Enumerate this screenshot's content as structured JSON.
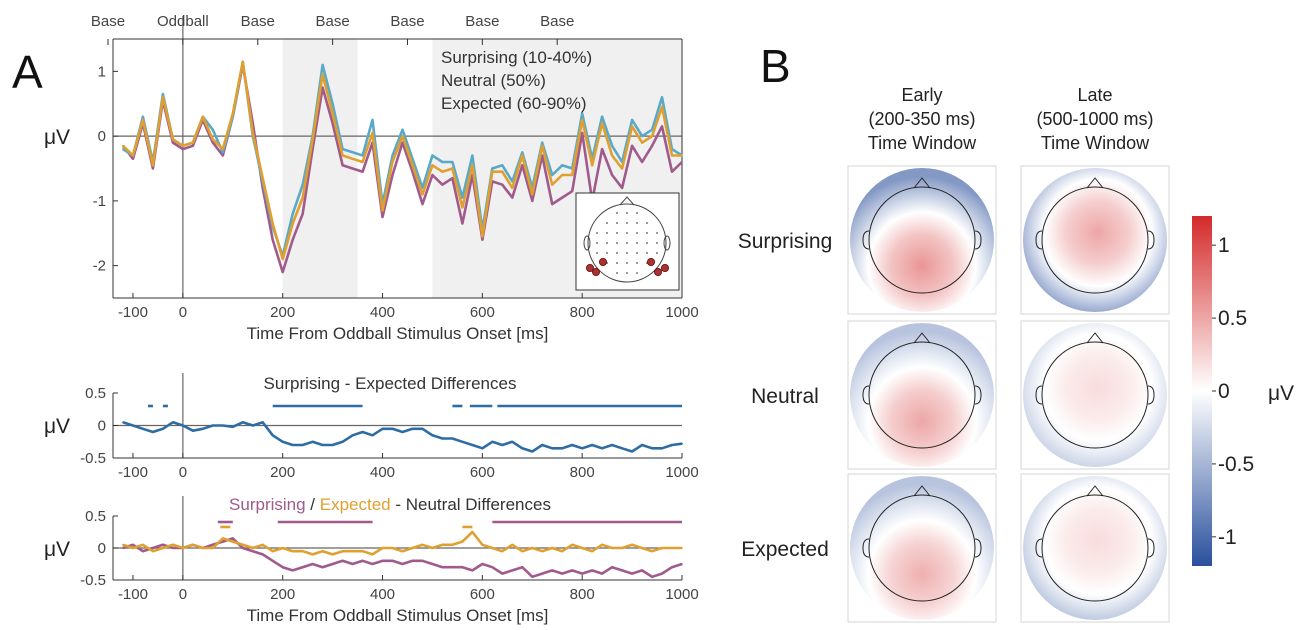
{
  "panel_a_label": "A",
  "panel_b_label": "B",
  "chart_data": [
    {
      "type": "line",
      "x": [
        -120,
        -100,
        -80,
        -60,
        -40,
        -20,
        0,
        20,
        40,
        60,
        80,
        100,
        120,
        140,
        160,
        180,
        200,
        220,
        240,
        260,
        280,
        300,
        320,
        340,
        360,
        380,
        400,
        420,
        440,
        460,
        480,
        500,
        520,
        540,
        560,
        580,
        600,
        620,
        640,
        660,
        680,
        700,
        720,
        740,
        760,
        780,
        800,
        820,
        840,
        860,
        880,
        900,
        920,
        940,
        960,
        980,
        1000
      ],
      "series": [
        {
          "name": "Surprising (10-40%)",
          "color": "#a05a8c",
          "values": [
            -0.15,
            -0.35,
            0.2,
            -0.5,
            0.55,
            -0.1,
            -0.2,
            -0.15,
            0.25,
            -0.1,
            -0.3,
            0.3,
            1.1,
            0.2,
            -0.8,
            -1.6,
            -2.1,
            -1.6,
            -1.2,
            -0.2,
            0.75,
            0.2,
            -0.45,
            -0.5,
            -0.55,
            -0.1,
            -1.25,
            -0.6,
            -0.1,
            -0.55,
            -1.05,
            -0.6,
            -0.75,
            -0.65,
            -1.35,
            -0.6,
            -1.6,
            -0.7,
            -0.75,
            -0.95,
            -0.45,
            -1.0,
            -0.3,
            -1.05,
            -0.95,
            -0.85,
            0.05,
            -1.0,
            -0.2,
            -0.6,
            -0.8,
            -0.15,
            -0.4,
            -0.15,
            0.15,
            -0.55,
            -0.4
          ]
        },
        {
          "name": "Neutral (50%)",
          "color": "#5aa9c9",
          "values": [
            -0.2,
            -0.3,
            0.3,
            -0.4,
            0.65,
            -0.05,
            -0.15,
            -0.1,
            0.3,
            0.1,
            -0.25,
            0.3,
            1.15,
            0.0,
            -0.7,
            -1.4,
            -1.85,
            -1.2,
            -0.75,
            0.0,
            1.1,
            0.5,
            -0.2,
            -0.25,
            -0.3,
            0.25,
            -1.05,
            -0.3,
            0.1,
            -0.35,
            -0.8,
            -0.3,
            -0.4,
            -0.4,
            -0.95,
            -0.3,
            -1.45,
            -0.5,
            -0.45,
            -0.7,
            -0.25,
            -0.8,
            -0.1,
            -0.6,
            -0.45,
            -0.5,
            0.35,
            -0.35,
            0.3,
            -0.15,
            -0.4,
            0.25,
            0.0,
            0.1,
            0.6,
            -0.2,
            -0.3
          ]
        },
        {
          "name": "Expected (60-90%)",
          "color": "#e0a030",
          "values": [
            -0.15,
            -0.3,
            0.25,
            -0.45,
            0.6,
            -0.05,
            -0.15,
            -0.1,
            0.3,
            -0.05,
            -0.2,
            0.35,
            1.15,
            0.05,
            -0.65,
            -1.35,
            -1.9,
            -1.35,
            -0.95,
            -0.05,
            0.95,
            0.35,
            -0.3,
            -0.35,
            -0.4,
            0.05,
            -1.15,
            -0.4,
            0.0,
            -0.45,
            -0.9,
            -0.45,
            -0.55,
            -0.5,
            -1.1,
            -0.45,
            -1.55,
            -0.55,
            -0.55,
            -0.8,
            -0.3,
            -0.9,
            -0.15,
            -0.75,
            -0.6,
            -0.6,
            0.25,
            -0.45,
            0.2,
            -0.3,
            -0.5,
            0.15,
            -0.1,
            0.0,
            0.45,
            -0.3,
            -0.3
          ]
        }
      ],
      "top_labels": [
        "Base",
        "Oddball",
        "Base",
        "Base",
        "Base",
        "Base",
        "Base"
      ],
      "top_label_x": [
        -150,
        0,
        150,
        300,
        450,
        600,
        750
      ],
      "shaded_windows": [
        [
          200,
          350
        ],
        [
          500,
          1000
        ]
      ],
      "xlim": [
        -140,
        1000
      ],
      "ylim": [
        -2.5,
        1.5
      ],
      "xticks": [
        -100,
        0,
        200,
        400,
        600,
        800,
        1000
      ],
      "yticks": [
        -2,
        -1,
        0,
        1
      ],
      "ylabel": "μV",
      "xlabel": "Time From Oddball Stimulus Onset [ms]",
      "grid": false,
      "legend_position": "top-right",
      "inset": "electrode head map (occipital electrodes highlighted)"
    },
    {
      "type": "line",
      "title": "Surprising - Expected Differences",
      "x": [
        -120,
        -100,
        -80,
        -60,
        -40,
        -20,
        0,
        20,
        40,
        60,
        80,
        100,
        120,
        140,
        160,
        180,
        200,
        220,
        240,
        260,
        280,
        300,
        320,
        340,
        360,
        380,
        400,
        420,
        440,
        460,
        480,
        500,
        520,
        540,
        560,
        580,
        600,
        620,
        640,
        660,
        680,
        700,
        720,
        740,
        760,
        780,
        800,
        820,
        840,
        860,
        880,
        900,
        920,
        940,
        960,
        980,
        1000
      ],
      "series": [
        {
          "name": "Surprising - Expected",
          "color": "#2e6ca4",
          "values": [
            0.05,
            0.0,
            -0.05,
            -0.1,
            -0.05,
            0.05,
            0.0,
            -0.08,
            -0.05,
            0.0,
            0.0,
            -0.02,
            0.05,
            0.0,
            0.05,
            -0.15,
            -0.25,
            -0.3,
            -0.3,
            -0.25,
            -0.3,
            -0.3,
            -0.25,
            -0.15,
            -0.1,
            -0.15,
            -0.05,
            -0.05,
            -0.1,
            -0.05,
            -0.05,
            -0.15,
            -0.2,
            -0.2,
            -0.25,
            -0.3,
            -0.35,
            -0.25,
            -0.3,
            -0.25,
            -0.35,
            -0.4,
            -0.3,
            -0.35,
            -0.35,
            -0.3,
            -0.35,
            -0.3,
            -0.35,
            -0.3,
            -0.35,
            -0.4,
            -0.3,
            -0.35,
            -0.35,
            -0.3,
            -0.28
          ]
        }
      ],
      "significance_bars": [
        {
          "color": "#2e6ca4",
          "segments": [
            [
              -70,
              -60
            ],
            [
              -40,
              -30
            ],
            [
              180,
              360
            ],
            [
              540,
              560
            ],
            [
              575,
              620
            ],
            [
              630,
              1000
            ]
          ]
        }
      ],
      "xlim": [
        -140,
        1000
      ],
      "ylim": [
        -0.5,
        0.5
      ],
      "xticks": [
        -100,
        0,
        200,
        400,
        600,
        800,
        1000
      ],
      "yticks": [
        -0.5,
        0,
        0.5
      ],
      "ylabel": "μV",
      "xlabel": ""
    },
    {
      "type": "line",
      "title_parts": [
        {
          "text": "Surprising",
          "color": "#a05a8c"
        },
        {
          "text": " / ",
          "color": "#333333"
        },
        {
          "text": "Expected",
          "color": "#e0a030"
        },
        {
          "text": " - Neutral Differences",
          "color": "#333333"
        }
      ],
      "x": [
        -120,
        -100,
        -80,
        -60,
        -40,
        -20,
        0,
        20,
        40,
        60,
        80,
        100,
        120,
        140,
        160,
        180,
        200,
        220,
        240,
        260,
        280,
        300,
        320,
        340,
        360,
        380,
        400,
        420,
        440,
        460,
        480,
        500,
        520,
        540,
        560,
        580,
        600,
        620,
        640,
        660,
        680,
        700,
        720,
        740,
        760,
        780,
        800,
        820,
        840,
        860,
        880,
        900,
        920,
        940,
        960,
        980,
        1000
      ],
      "series": [
        {
          "name": "Surprising - Neutral",
          "color": "#a05a8c",
          "values": [
            0.0,
            0.05,
            -0.05,
            0.0,
            0.05,
            0.0,
            0.0,
            0.05,
            0.0,
            0.05,
            0.1,
            0.15,
            0.0,
            -0.05,
            -0.1,
            -0.2,
            -0.3,
            -0.35,
            -0.3,
            -0.25,
            -0.3,
            -0.25,
            -0.2,
            -0.25,
            -0.2,
            -0.25,
            -0.2,
            -0.2,
            -0.25,
            -0.2,
            -0.2,
            -0.25,
            -0.3,
            -0.3,
            -0.3,
            -0.35,
            -0.25,
            -0.3,
            -0.4,
            -0.35,
            -0.3,
            -0.45,
            -0.4,
            -0.35,
            -0.4,
            -0.35,
            -0.4,
            -0.35,
            -0.4,
            -0.3,
            -0.35,
            -0.4,
            -0.35,
            -0.45,
            -0.4,
            -0.3,
            -0.25
          ]
        },
        {
          "name": "Expected - Neutral",
          "color": "#e0a030",
          "values": [
            0.05,
            0.0,
            0.05,
            -0.05,
            0.0,
            0.05,
            0.0,
            0.05,
            0.0,
            0.0,
            0.15,
            0.1,
            0.05,
            0.0,
            0.05,
            -0.05,
            0.0,
            -0.05,
            -0.05,
            -0.1,
            -0.05,
            -0.1,
            -0.05,
            -0.05,
            -0.05,
            -0.1,
            0.0,
            0.0,
            -0.05,
            0.0,
            0.05,
            0.0,
            0.05,
            0.05,
            0.1,
            0.25,
            0.05,
            0.0,
            -0.05,
            0.05,
            -0.05,
            0.0,
            -0.05,
            0.0,
            -0.05,
            0.05,
            0.0,
            -0.05,
            0.05,
            0.0,
            0.0,
            0.05,
            0.0,
            -0.05,
            0.0,
            0.0,
            0.0
          ]
        }
      ],
      "significance_bars": [
        {
          "color": "#a05a8c",
          "segments": [
            [
              70,
              100
            ],
            [
              190,
              380
            ],
            [
              620,
              1000
            ]
          ]
        },
        {
          "color": "#e0a030",
          "segments": [
            [
              75,
              95
            ],
            [
              560,
              580
            ]
          ]
        }
      ],
      "xlim": [
        -140,
        1000
      ],
      "ylim": [
        -0.5,
        0.5
      ],
      "xticks": [
        -100,
        0,
        200,
        400,
        600,
        800,
        1000
      ],
      "yticks": [
        -0.5,
        0,
        0.5
      ],
      "ylabel": "μV",
      "xlabel": "Time From Oddball Stimulus Onset [ms]"
    },
    {
      "type": "heatmap",
      "column_headers": [
        [
          "Early",
          "(200-350 ms)",
          "Time Window"
        ],
        [
          "Late",
          "(500-1000 ms)",
          "Time Window"
        ]
      ],
      "row_labels": [
        "Surprising",
        "Neutral",
        "Expected"
      ],
      "maps": [
        {
          "row": "Surprising",
          "window": "Early",
          "description": "strong central-occipital positivity",
          "peak": 0.6,
          "edge": -0.7
        },
        {
          "row": "Surprising",
          "window": "Late",
          "description": "broad central positivity",
          "peak": 0.5,
          "edge": -0.8
        },
        {
          "row": "Neutral",
          "window": "Early",
          "description": "occipital positivity",
          "peak": 0.5,
          "edge": -0.4
        },
        {
          "row": "Neutral",
          "window": "Late",
          "description": "broad mild positivity",
          "peak": 0.2,
          "edge": -0.4
        },
        {
          "row": "Expected",
          "window": "Early",
          "description": "occipital positivity",
          "peak": 0.45,
          "edge": -0.4
        },
        {
          "row": "Expected",
          "window": "Late",
          "description": "broad mild positivity",
          "peak": 0.2,
          "edge": -0.5
        }
      ],
      "colorbar": {
        "range": [
          -1.2,
          1.2
        ],
        "ticks": [
          1,
          0.5,
          0,
          -0.5,
          -1
        ],
        "tick_labels": [
          "1",
          "0.5",
          "0",
          "-0.5",
          "-1"
        ],
        "label": "μV",
        "colors": [
          "#2a4f9c",
          "#ffffff",
          "#d42a2a"
        ]
      }
    }
  ]
}
